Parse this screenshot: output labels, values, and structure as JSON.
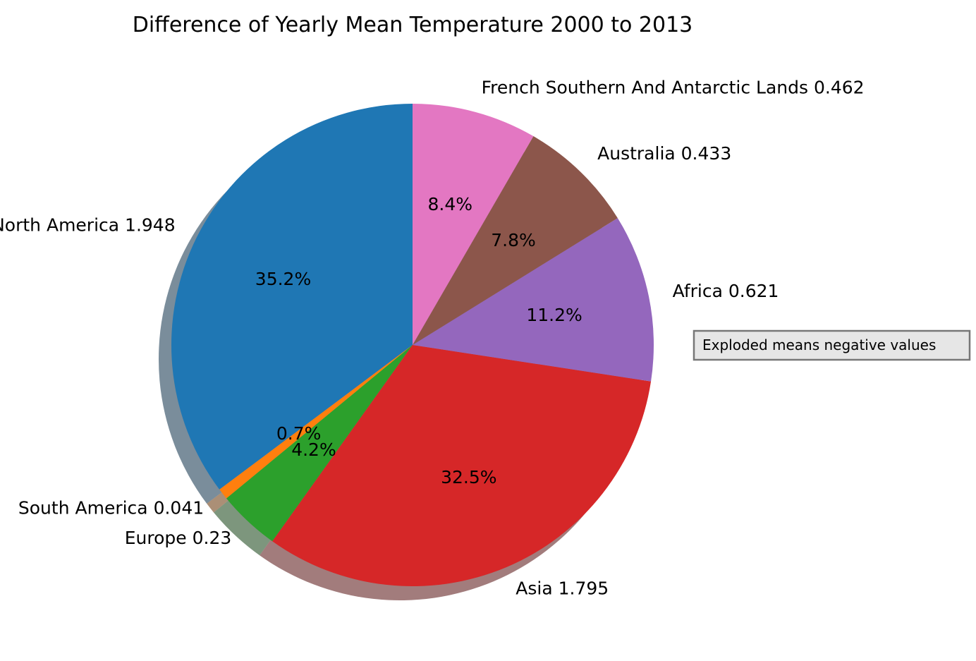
{
  "chart_data": {
    "type": "pie",
    "title": "Difference of Yearly Mean Temperature 2000 to 2013",
    "slices": [
      {
        "name": "North America",
        "value": 1.948,
        "label": "North America 1.948",
        "pct": "35.2%",
        "color": "#1f77b4"
      },
      {
        "name": "South America",
        "value": 0.041,
        "label": "South America 0.041",
        "pct": "0.7%",
        "color": "#ff7f0e"
      },
      {
        "name": "Europe",
        "value": 0.23,
        "label": "Europe 0.23",
        "pct": "4.2%",
        "color": "#2ca02c"
      },
      {
        "name": "Asia",
        "value": 1.795,
        "label": "Asia 1.795",
        "pct": "32.5%",
        "color": "#d62728"
      },
      {
        "name": "Africa",
        "value": 0.621,
        "label": "Africa 0.621",
        "pct": "11.2%",
        "color": "#9467bd"
      },
      {
        "name": "Australia",
        "value": 0.433,
        "label": "Australia 0.433",
        "pct": "7.8%",
        "color": "#8c564b"
      },
      {
        "name": "French Southern And Antarctic Lands",
        "value": 0.462,
        "label": "French Southern And Antarctic Lands 0.462",
        "pct": "8.4%",
        "color": "#e377c2"
      }
    ],
    "start_angle_deg": 90,
    "direction": "counterclockwise",
    "shadow": true,
    "legend_text": "Exploded means negative values",
    "legend_placement": "right"
  }
}
